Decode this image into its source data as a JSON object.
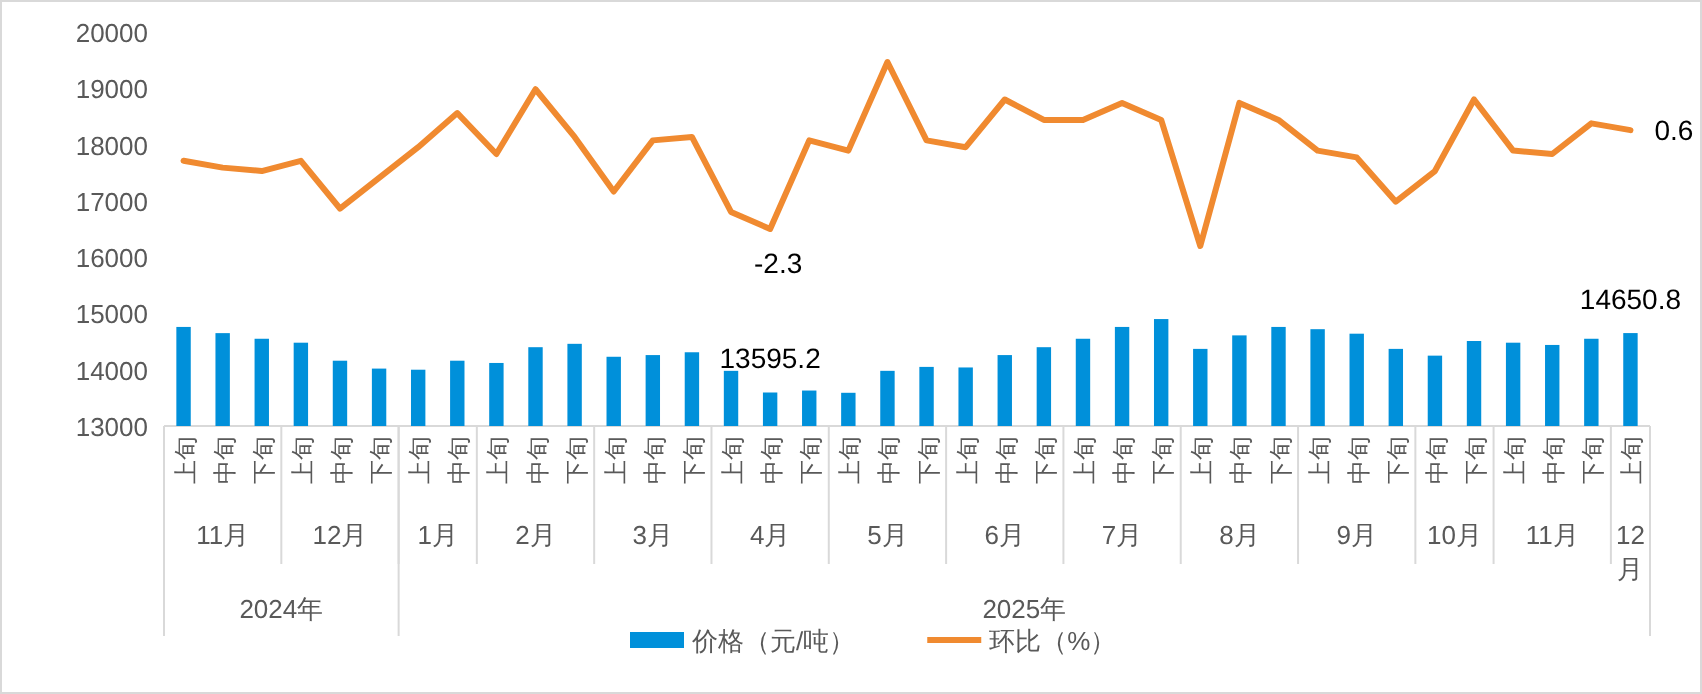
{
  "chart_data": {
    "type": "bar",
    "categories": [
      "上旬",
      "中旬",
      "下旬",
      "上旬",
      "中旬",
      "下旬",
      "上旬",
      "中旬",
      "上旬",
      "中旬",
      "下旬",
      "上旬",
      "中旬",
      "下旬",
      "上旬",
      "中旬",
      "下旬",
      "上旬",
      "中旬",
      "下旬",
      "上旬",
      "中旬",
      "下旬",
      "上旬",
      "中旬",
      "下旬",
      "上旬",
      "中旬",
      "下旬",
      "上旬",
      "中旬",
      "下旬",
      "中旬",
      "下旬",
      "上旬",
      "中旬",
      "下旬",
      "上旬"
    ],
    "series": [
      {
        "name": "价格（元/吨）",
        "color": "#0090da",
        "values": [
          14760,
          14650,
          14550,
          14480,
          14160,
          14020,
          14000,
          14160,
          14120,
          14400,
          14460,
          14230,
          14260,
          14310,
          13980,
          13595.2,
          13630,
          13590,
          13980,
          14050,
          14040,
          14260,
          14400,
          14550,
          14760,
          14900,
          14370,
          14610,
          14760,
          14720,
          14640,
          14370,
          14250,
          14510,
          14480,
          14440,
          14550,
          14650.8
        ],
        "value_labels": [
          null,
          null,
          null,
          null,
          null,
          null,
          null,
          null,
          null,
          null,
          null,
          null,
          null,
          null,
          null,
          "13595.2",
          null,
          null,
          null,
          null,
          null,
          null,
          null,
          null,
          null,
          null,
          null,
          null,
          null,
          null,
          null,
          null,
          null,
          null,
          null,
          null,
          null,
          "14650.8"
        ]
      },
      {
        "name": "环比（%）",
        "type": "line",
        "axis": "y2",
        "color": "#f08a30",
        "values": [
          -0.3,
          -0.5,
          -0.6,
          -0.3,
          -1.7,
          -0.8,
          0.1,
          1.1,
          -0.1,
          1.8,
          0.4,
          -1.2,
          0.3,
          0.4,
          -1.8,
          -2.3,
          0.3,
          0.0,
          2.6,
          0.3,
          0.1,
          1.5,
          0.9,
          0.9,
          1.4,
          0.9,
          -2.8,
          1.4,
          0.9,
          0.0,
          -0.2,
          -1.5,
          -0.6,
          1.5,
          0.0,
          -0.1,
          0.8,
          0.6
        ],
        "value_labels": [
          null,
          null,
          null,
          null,
          null,
          null,
          null,
          null,
          null,
          null,
          null,
          null,
          null,
          null,
          null,
          "-2.3",
          null,
          null,
          null,
          null,
          null,
          null,
          null,
          null,
          null,
          null,
          null,
          null,
          null,
          null,
          null,
          null,
          null,
          null,
          null,
          null,
          null,
          "0.6"
        ]
      }
    ],
    "ylim": [
      13000,
      20000
    ],
    "yticks": [
      13000,
      14000,
      15000,
      16000,
      17000,
      18000,
      19000,
      20000
    ],
    "annotations": [
      "11月",
      "12月",
      "1月",
      "2月",
      "3月",
      "4月",
      "5月",
      "6月",
      "7月",
      "8月",
      "9月",
      "10月",
      "11月",
      "12月",
      "2024年",
      "2025年"
    ],
    "legend": "bottom",
    "line_style": "solid",
    "marker": "none",
    "grid": false
  }
}
